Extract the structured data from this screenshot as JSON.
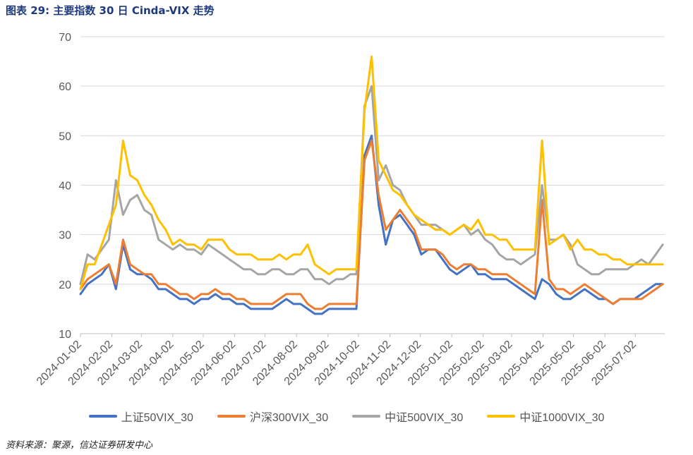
{
  "figure": {
    "title": "图表 29:  主要指数 30 日 Cinda-VIX 走势",
    "source": "资料来源：聚源，信达证券研发中心"
  },
  "chart_data": {
    "type": "line",
    "x": [
      "2024-01-02",
      "2024-01-09",
      "2024-01-16",
      "2024-01-23",
      "2024-01-30",
      "2024-02-06",
      "2024-02-13",
      "2024-02-20",
      "2024-02-27",
      "2024-03-05",
      "2024-03-12",
      "2024-03-19",
      "2024-03-26",
      "2024-04-02",
      "2024-04-09",
      "2024-04-16",
      "2024-04-23",
      "2024-04-30",
      "2024-05-07",
      "2024-05-14",
      "2024-05-21",
      "2024-05-28",
      "2024-06-04",
      "2024-06-11",
      "2024-06-18",
      "2024-06-25",
      "2024-07-02",
      "2024-07-09",
      "2024-07-16",
      "2024-07-23",
      "2024-07-30",
      "2024-08-06",
      "2024-08-13",
      "2024-08-20",
      "2024-08-27",
      "2024-09-03",
      "2024-09-10",
      "2024-09-17",
      "2024-09-24",
      "2024-09-30",
      "2024-10-08",
      "2024-10-15",
      "2024-10-22",
      "2024-10-29",
      "2024-11-05",
      "2024-11-12",
      "2024-11-19",
      "2024-11-26",
      "2024-12-03",
      "2024-12-10",
      "2024-12-17",
      "2024-12-24",
      "2024-12-31",
      "2025-01-07",
      "2025-01-14",
      "2025-01-21",
      "2025-01-28",
      "2025-02-04",
      "2025-02-11",
      "2025-02-18",
      "2025-02-25",
      "2025-03-04",
      "2025-03-11",
      "2025-03-18",
      "2025-03-25",
      "2025-04-01",
      "2025-04-08",
      "2025-04-15",
      "2025-04-22",
      "2025-04-29",
      "2025-05-06",
      "2025-05-13",
      "2025-05-20",
      "2025-05-27",
      "2025-06-03",
      "2025-06-10",
      "2025-06-17",
      "2025-06-24",
      "2025-07-01",
      "2025-07-08",
      "2025-07-15",
      "2025-07-22",
      "2025-07-29"
    ],
    "xticks": [
      "2024-01-02",
      "2024-02-02",
      "2024-03-02",
      "2024-04-02",
      "2024-05-02",
      "2024-06-02",
      "2024-07-02",
      "2024-08-02",
      "2024-09-02",
      "2024-10-02",
      "2024-11-02",
      "2024-12-02",
      "2025-01-02",
      "2025-02-02",
      "2025-03-02",
      "2025-04-02",
      "2025-05-02",
      "2025-06-02",
      "2025-07-02"
    ],
    "x_end": "2025-07-31",
    "ylim": [
      10,
      70
    ],
    "yticks": [
      10,
      20,
      30,
      40,
      50,
      60,
      70
    ],
    "grid": true,
    "legend_position": "bottom",
    "series": [
      {
        "name": "上证50VIX_30",
        "color": "#4472C4",
        "values": [
          18,
          20,
          21,
          22,
          24,
          19,
          28,
          23,
          22,
          22,
          21,
          19,
          19,
          18,
          17,
          17,
          16,
          17,
          17,
          18,
          17,
          17,
          16,
          16,
          15,
          15,
          15,
          15,
          16,
          17,
          16,
          16,
          15,
          14,
          14,
          15,
          15,
          15,
          15,
          15,
          46,
          50,
          36,
          28,
          33,
          34,
          32,
          30,
          26,
          27,
          27,
          25,
          23,
          22,
          23,
          24,
          22,
          22,
          21,
          21,
          21,
          20,
          19,
          18,
          17,
          21,
          20,
          18,
          17,
          17,
          18,
          19,
          18,
          17,
          17,
          16,
          17,
          17,
          17,
          18,
          19,
          20,
          20
        ]
      },
      {
        "name": "沪深300VIX_30",
        "color": "#ED7D31",
        "values": [
          19,
          21,
          22,
          23,
          24,
          20,
          29,
          24,
          23,
          22,
          22,
          20,
          20,
          19,
          18,
          18,
          17,
          18,
          18,
          19,
          18,
          18,
          17,
          17,
          16,
          16,
          16,
          16,
          17,
          18,
          18,
          18,
          16,
          15,
          15,
          16,
          16,
          16,
          16,
          16,
          45,
          49,
          38,
          31,
          33,
          35,
          33,
          31,
          27,
          27,
          27,
          26,
          24,
          23,
          24,
          24,
          23,
          23,
          22,
          22,
          22,
          21,
          20,
          19,
          18,
          37,
          21,
          19,
          19,
          18,
          19,
          20,
          19,
          18,
          17,
          16,
          17,
          17,
          17,
          17,
          18,
          19,
          20
        ]
      },
      {
        "name": "中证500VIX_30",
        "color": "#A5A5A5",
        "values": [
          20,
          26,
          25,
          27,
          29,
          41,
          34,
          37,
          38,
          35,
          34,
          29,
          28,
          27,
          28,
          27,
          27,
          26,
          28,
          27,
          26,
          25,
          24,
          23,
          23,
          22,
          22,
          23,
          23,
          22,
          22,
          23,
          23,
          21,
          21,
          20,
          21,
          21,
          22,
          22,
          56,
          60,
          41,
          44,
          40,
          39,
          36,
          34,
          32,
          32,
          32,
          31,
          30,
          31,
          32,
          30,
          31,
          29,
          28,
          26,
          25,
          25,
          24,
          25,
          26,
          40,
          29,
          29,
          30,
          28,
          24,
          23,
          22,
          22,
          23,
          23,
          23,
          23,
          24,
          25,
          24,
          26,
          28
        ]
      },
      {
        "name": "中证1000VIX_30",
        "color": "#FFC000",
        "values": [
          19,
          24,
          24,
          28,
          32,
          36,
          49,
          42,
          41,
          38,
          36,
          33,
          31,
          28,
          29,
          28,
          28,
          27,
          29,
          29,
          29,
          27,
          26,
          26,
          26,
          25,
          25,
          25,
          26,
          25,
          26,
          26,
          28,
          24,
          23,
          22,
          23,
          23,
          23,
          23,
          55,
          66,
          45,
          42,
          39,
          38,
          36,
          34,
          33,
          32,
          31,
          31,
          30,
          31,
          32,
          31,
          33,
          30,
          30,
          29,
          29,
          27,
          27,
          27,
          27,
          49,
          28,
          29,
          30,
          27,
          29,
          27,
          27,
          26,
          26,
          25,
          25,
          24,
          24,
          24,
          24,
          24,
          24
        ]
      }
    ]
  }
}
